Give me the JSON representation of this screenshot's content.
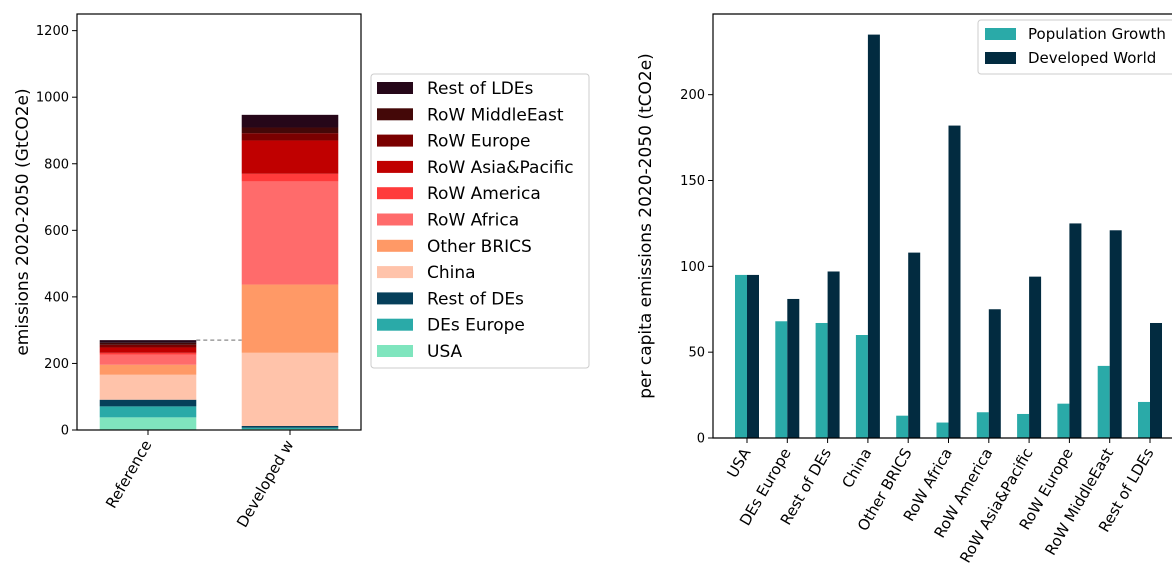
{
  "chart_data": [
    {
      "type": "bar",
      "stacked": true,
      "ylabel": "emissions 2020-2050 (GtCO2e)",
      "ylim": [
        0,
        1250
      ],
      "yticks": [
        "0",
        "200",
        "400",
        "600",
        "800",
        "1000",
        "1200"
      ],
      "categories": [
        "Reference",
        "Developed w"
      ],
      "reference_line_value": 270,
      "legend_position": "right outside",
      "series": [
        {
          "name": "USA",
          "color": "#7fe5be",
          "values": [
            38,
            3
          ]
        },
        {
          "name": "DEs Europe",
          "color": "#2aaaa8",
          "values": [
            33,
            4
          ]
        },
        {
          "name": "Rest of DEs",
          "color": "#063f5a",
          "values": [
            20,
            5
          ]
        },
        {
          "name": "China",
          "color": "#ffc3aa",
          "values": [
            75,
            220
          ]
        },
        {
          "name": "Other BRICS",
          "color": "#ff9966",
          "values": [
            30,
            205
          ]
        },
        {
          "name": "RoW Africa",
          "color": "#ff6b6b",
          "values": [
            30,
            310
          ]
        },
        {
          "name": "RoW America",
          "color": "#ff3b3b",
          "values": [
            6,
            23
          ]
        },
        {
          "name": "RoW Asia&Pacific",
          "color": "#c00000",
          "values": [
            16,
            100
          ]
        },
        {
          "name": "RoW Europe",
          "color": "#7a0000",
          "values": [
            8,
            22
          ]
        },
        {
          "name": "RoW MiddleEast",
          "color": "#440808",
          "values": [
            6,
            17
          ]
        },
        {
          "name": "Rest of LDEs",
          "color": "#260719",
          "values": [
            8,
            38
          ]
        }
      ]
    },
    {
      "type": "bar",
      "ylabel": "per capita emissions 2020-2050 (tCO2e)",
      "ylim": [
        0,
        247
      ],
      "yticks": [
        "0",
        "50",
        "100",
        "150",
        "200"
      ],
      "legend_position": "top-right",
      "categories": [
        "USA",
        "DEs Europe",
        "Rest of DEs",
        "China",
        "Other BRICS",
        "RoW Africa",
        "RoW America",
        "RoW Asia&Pacific",
        "RoW Europe",
        "RoW MiddleEast",
        "Rest of LDEs"
      ],
      "series": [
        {
          "name": "Population Growth",
          "color": "#2aaaa8",
          "values": [
            95,
            68,
            67,
            60,
            13,
            9,
            15,
            14,
            20,
            42,
            21
          ]
        },
        {
          "name": "Developed World",
          "color": "#022b40",
          "values": [
            95,
            81,
            97,
            235,
            108,
            182,
            75,
            94,
            125,
            121,
            67
          ]
        }
      ]
    }
  ]
}
